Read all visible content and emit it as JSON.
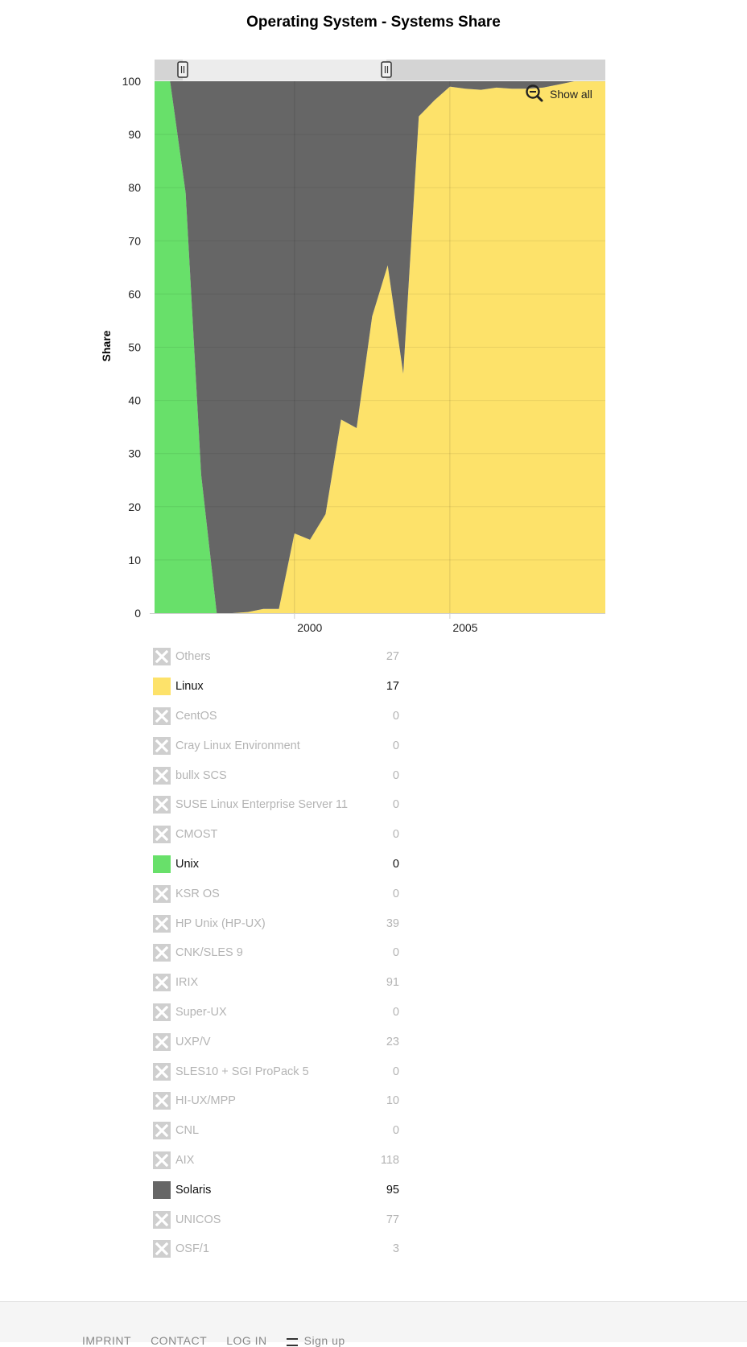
{
  "chart_data": {
    "type": "area",
    "stacking": "percent",
    "title": "Operating System - Systems Share",
    "ylabel": "Share",
    "xlabel": "",
    "ylim": [
      0,
      100
    ],
    "yticks": [
      0,
      10,
      20,
      30,
      40,
      50,
      60,
      70,
      80,
      90,
      100
    ],
    "xlim": [
      1995.5,
      2010
    ],
    "xticks": [
      2000,
      2005
    ],
    "x": [
      1995.5,
      1996.0,
      1996.5,
      1997.0,
      1997.5,
      1998.0,
      1998.5,
      1999.0,
      1999.5,
      2000.0,
      2000.5,
      2001.0,
      2001.5,
      2002.0,
      2002.5,
      2003.0,
      2003.5,
      2004.0,
      2004.5,
      2005.0,
      2005.5,
      2006.0,
      2006.5,
      2007.0,
      2007.5,
      2008.0,
      2008.5,
      2009.0,
      2009.5,
      2010.0
    ],
    "series": [
      {
        "name": "Linux",
        "color": "#fde26a",
        "values": [
          0,
          0,
          0,
          0,
          0,
          0,
          0.2,
          0.8,
          0.8,
          15.0,
          13.8,
          18.6,
          36.4,
          34.8,
          55.8,
          65.4,
          45.0,
          93.4,
          96.4,
          99.0,
          98.6,
          98.4,
          98.8,
          98.6,
          98.6,
          98.8,
          99.4,
          100,
          100,
          100
        ]
      },
      {
        "name": "Unix",
        "color": "#68e06a",
        "values": [
          100,
          100,
          79.0,
          26.0,
          0,
          0,
          0,
          0,
          0,
          0,
          0,
          0,
          0,
          0,
          0,
          0,
          0,
          0,
          0,
          0,
          0,
          0,
          0,
          0,
          0,
          0,
          0,
          0,
          0,
          0
        ]
      },
      {
        "name": "Solaris",
        "color": "#666666",
        "values": [
          0,
          0,
          21.0,
          74.0,
          100,
          100,
          99.8,
          99.2,
          99.2,
          85.0,
          86.2,
          81.4,
          63.6,
          65.2,
          44.2,
          34.6,
          55.0,
          6.6,
          3.6,
          1.0,
          1.4,
          1.6,
          1.2,
          1.4,
          1.4,
          1.2,
          0.6,
          0,
          0,
          0
        ]
      }
    ],
    "series_x_override": {
      "Unix_breakpoints_note": ""
    },
    "grid": true,
    "legend_placement": "bottom"
  },
  "zoom": {
    "label": "Show all"
  },
  "legend": {
    "items": [
      {
        "label": "Others",
        "value": "27",
        "enabled": false,
        "color": "#cfcfcf"
      },
      {
        "label": "Linux",
        "value": "17",
        "enabled": true,
        "color": "#fde26a"
      },
      {
        "label": "CentOS",
        "value": "0",
        "enabled": false,
        "color": "#cfcfcf"
      },
      {
        "label": "Cray Linux Environment",
        "value": "0",
        "enabled": false,
        "color": "#cfcfcf"
      },
      {
        "label": "bullx SCS",
        "value": "0",
        "enabled": false,
        "color": "#cfcfcf"
      },
      {
        "label": "SUSE Linux Enterprise Server 11",
        "value": "0",
        "enabled": false,
        "color": "#cfcfcf"
      },
      {
        "label": "CMOST",
        "value": "0",
        "enabled": false,
        "color": "#cfcfcf"
      },
      {
        "label": "Unix",
        "value": "0",
        "enabled": true,
        "color": "#68e06a"
      },
      {
        "label": "KSR OS",
        "value": "0",
        "enabled": false,
        "color": "#cfcfcf"
      },
      {
        "label": "HP Unix (HP-UX)",
        "value": "39",
        "enabled": false,
        "color": "#cfcfcf"
      },
      {
        "label": "CNK/SLES 9",
        "value": "0",
        "enabled": false,
        "color": "#cfcfcf"
      },
      {
        "label": "IRIX",
        "value": "91",
        "enabled": false,
        "color": "#cfcfcf"
      },
      {
        "label": "Super-UX",
        "value": "0",
        "enabled": false,
        "color": "#cfcfcf"
      },
      {
        "label": "UXP/V",
        "value": "23",
        "enabled": false,
        "color": "#cfcfcf"
      },
      {
        "label": "SLES10 + SGI ProPack 5",
        "value": "0",
        "enabled": false,
        "color": "#cfcfcf"
      },
      {
        "label": "HI-UX/MPP",
        "value": "10",
        "enabled": false,
        "color": "#cfcfcf"
      },
      {
        "label": "CNL",
        "value": "0",
        "enabled": false,
        "color": "#cfcfcf"
      },
      {
        "label": "AIX",
        "value": "118",
        "enabled": false,
        "color": "#cfcfcf"
      },
      {
        "label": "Solaris",
        "value": "95",
        "enabled": true,
        "color": "#666666"
      },
      {
        "label": "UNICOS",
        "value": "77",
        "enabled": false,
        "color": "#cfcfcf"
      },
      {
        "label": "OSF/1",
        "value": "3",
        "enabled": false,
        "color": "#cfcfcf"
      }
    ]
  },
  "footer": {
    "links": [
      "IMPRINT",
      "CONTACT",
      "LOG IN"
    ],
    "signup": "Sign up"
  }
}
